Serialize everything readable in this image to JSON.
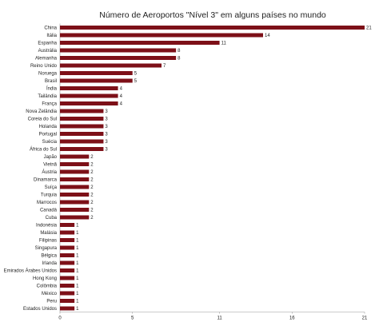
{
  "chart_data": {
    "type": "bar",
    "orientation": "horizontal",
    "title": "Número de Aeroportos \"Nível 3\" em alguns países no mundo",
    "xlabel": "",
    "ylabel": "",
    "xlim": [
      0,
      21
    ],
    "xticks": [
      0,
      5,
      11,
      16,
      21
    ],
    "grid": false,
    "bar_color": "#7d1018",
    "categories": [
      "China",
      "Itália",
      "Espanha",
      "Austrália",
      "Alemanha",
      "Reino Unido",
      "Noruega",
      "Brasil",
      "Índia",
      "Tailândia",
      "França",
      "Nova Zelândia",
      "Coreia do Sul",
      "Holanda",
      "Portugal",
      "Suécia",
      "África do Sul",
      "Japão",
      "Vietnã",
      "Áustria",
      "Dinamarca",
      "Suíça",
      "Turquia",
      "Marrocos",
      "Canadá",
      "Cuba",
      "Indonésia",
      "Malásia",
      "Filipinas",
      "Singapura",
      "Bélgica",
      "Irlanda",
      "Emirados Árabes Unidos",
      "Hong Kong",
      "Colômbia",
      "México",
      "Peru",
      "Estados Unidos"
    ],
    "values": [
      21,
      14,
      11,
      8,
      8,
      7,
      5,
      5,
      4,
      4,
      4,
      3,
      3,
      3,
      3,
      3,
      3,
      2,
      2,
      2,
      2,
      2,
      2,
      2,
      2,
      2,
      1,
      1,
      1,
      1,
      1,
      1,
      1,
      1,
      1,
      1,
      1,
      1
    ]
  }
}
